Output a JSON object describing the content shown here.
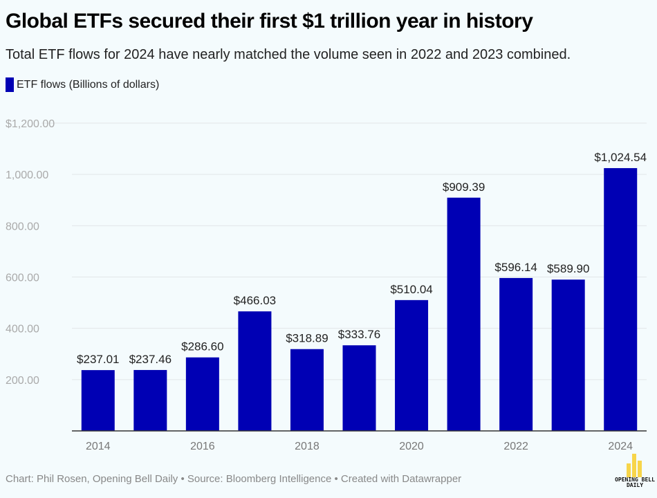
{
  "title": "Global ETFs secured their first $1 trillion year in history",
  "subtitle": "Total ETF flows for 2024 have nearly matched the volume seen in 2022 and 2023 combined.",
  "footer": "Chart: Phil Rosen, Opening Bell Daily • Source: Bloomberg Intelligence • Created with Datawrapper",
  "logo_text": "OPENING BELL DAILY",
  "colors": {
    "bar": "#0000b4",
    "background": "#f4fbfd",
    "logo": "#f7d54a"
  },
  "chart_data": {
    "type": "bar",
    "categories": [
      "2014",
      "2015",
      "2016",
      "2017",
      "2018",
      "2019",
      "2020",
      "2021",
      "2022",
      "2023",
      "2024"
    ],
    "x_tick_labels": [
      "2014",
      "2016",
      "2018",
      "2020",
      "2022",
      "2024"
    ],
    "series": [
      {
        "name": "ETF flows (Billions of dollars)",
        "values": [
          237.01,
          237.46,
          286.6,
          466.03,
          318.89,
          333.76,
          510.04,
          909.39,
          596.14,
          589.9,
          1024.54
        ]
      }
    ],
    "data_labels": [
      "$237.01",
      "$237.46",
      "$286.60",
      "$466.03",
      "$318.89",
      "$333.76",
      "$510.04",
      "$909.39",
      "$596.14",
      "$589.90",
      "$1,024.54"
    ],
    "y_ticks": [
      200,
      400,
      600,
      800,
      1000,
      1200
    ],
    "y_tick_labels": [
      "200.00",
      "400.00",
      "600.00",
      "800.00",
      "1,000.00",
      "$1,200.00"
    ],
    "ylim": [
      0,
      1200
    ],
    "grid": true,
    "legend": "top-left"
  }
}
